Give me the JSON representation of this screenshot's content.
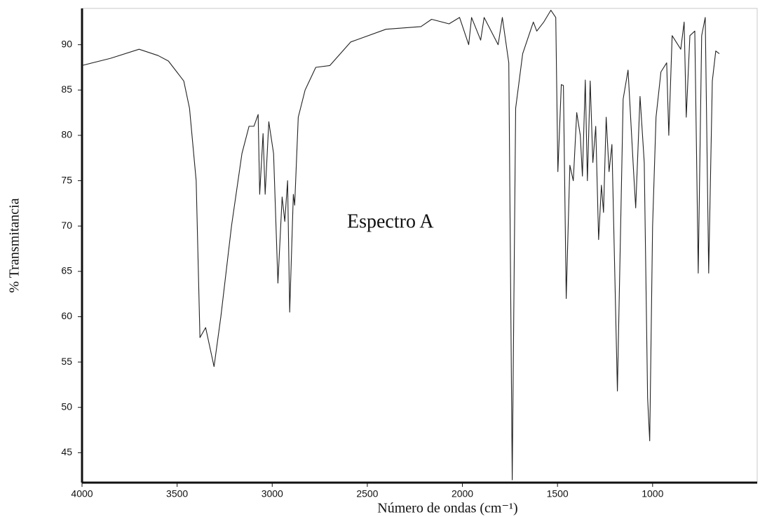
{
  "chart_data": {
    "type": "line",
    "annotation": "Espectro A",
    "y_label": "% Transmitancia",
    "x_label": "Número de ondas (cm⁻¹)",
    "color": "#222222",
    "xlim": [
      4000,
      450
    ],
    "xticks": [
      4000,
      3500,
      3000,
      2500,
      2000,
      1500,
      1000
    ],
    "ylim": [
      41.7,
      94
    ],
    "yticks": [
      45,
      50,
      55,
      60,
      65,
      70,
      75,
      80,
      85,
      90
    ],
    "x": [
      4000,
      3850,
      3700,
      3600,
      3546,
      3465,
      3435,
      3400,
      3380,
      3350,
      3306,
      3270,
      3214,
      3159,
      3122,
      3096,
      3074,
      3066,
      3048,
      3037,
      3018,
      2993,
      2970,
      2948,
      2934,
      2919,
      2908,
      2889,
      2882,
      2863,
      2827,
      2771,
      2697,
      2587,
      2402,
      2218,
      2162,
      2070,
      2015,
      1967,
      1952,
      1904,
      1886,
      1812,
      1790,
      1756,
      1738,
      1720,
      1683,
      1627,
      1609,
      1572,
      1535,
      1509,
      1498,
      1480,
      1469,
      1454,
      1435,
      1417,
      1399,
      1380,
      1369,
      1354,
      1343,
      1328,
      1314,
      1299,
      1284,
      1269,
      1258,
      1244,
      1229,
      1214,
      1185,
      1155,
      1129,
      1100,
      1089,
      1066,
      1044,
      1026,
      1015,
      1000,
      982,
      956,
      926,
      915,
      897,
      852,
      834,
      823,
      804,
      778,
      760,
      742,
      723,
      705,
      686,
      668,
      649
    ],
    "values": [
      87.7,
      88.5,
      89.5,
      88.8,
      88.2,
      86,
      83,
      75,
      57.7,
      58.8,
      54.5,
      60,
      70,
      78,
      81,
      81,
      82.3,
      73.5,
      80.2,
      73.5,
      81.5,
      78,
      63.7,
      73.2,
      70.5,
      75,
      60.5,
      73.5,
      72.3,
      82,
      85,
      87.5,
      87.7,
      90.3,
      91.7,
      92,
      92.8,
      92.3,
      93,
      90,
      93,
      90.5,
      93,
      90,
      93,
      88,
      42,
      83,
      89,
      92.5,
      91.5,
      92.5,
      93.8,
      93,
      76,
      85.6,
      85.5,
      62,
      76.7,
      75,
      82.5,
      80,
      75.5,
      86.1,
      75,
      86,
      77,
      81,
      68.5,
      74.5,
      71.5,
      82,
      76,
      79,
      51.8,
      84,
      87.2,
      76,
      72,
      84.3,
      77,
      51,
      46.3,
      70,
      82,
      87,
      88,
      80,
      91,
      89.5,
      92.5,
      82,
      91,
      91.5,
      64.8,
      91,
      93,
      64.8,
      86,
      89.3,
      89
    ]
  }
}
